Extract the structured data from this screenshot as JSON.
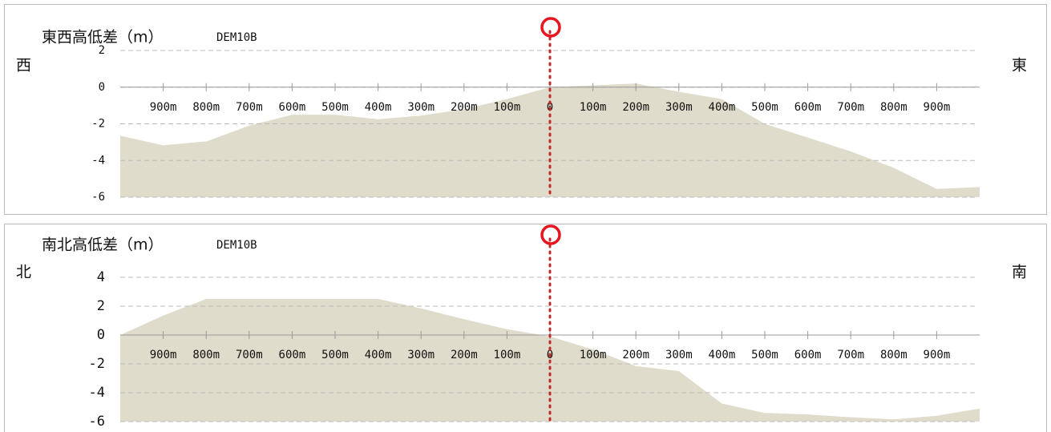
{
  "chart_data": [
    {
      "type": "area",
      "title": "東西高低差（m）",
      "subtitle": "DEM10B",
      "left_label": "西",
      "right_label": "東",
      "x": [
        -1000,
        -900,
        -800,
        -700,
        -600,
        -500,
        -400,
        -300,
        -200,
        -100,
        0,
        100,
        200,
        300,
        400,
        500,
        600,
        700,
        800,
        900,
        1000
      ],
      "values": [
        -2.65,
        -3.17,
        -2.96,
        -2.1,
        -1.5,
        -1.5,
        -1.75,
        -1.55,
        -1.2,
        -0.65,
        0,
        0.1,
        0.2,
        -0.25,
        -0.65,
        -2.0,
        -2.75,
        -3.5,
        -4.4,
        -5.55,
        -5.45
      ],
      "color": "#e0dccb",
      "xlim": [
        -1000,
        1000
      ],
      "xticks": [
        {
          "value": -900,
          "label": "900m"
        },
        {
          "value": -800,
          "label": "800m"
        },
        {
          "value": -700,
          "label": "700m"
        },
        {
          "value": -600,
          "label": "600m"
        },
        {
          "value": -500,
          "label": "500m"
        },
        {
          "value": -400,
          "label": "400m"
        },
        {
          "value": -300,
          "label": "300m"
        },
        {
          "value": -200,
          "label": "200m"
        },
        {
          "value": -100,
          "label": "100m"
        },
        0,
        {
          "value": 100,
          "label": "100m"
        },
        {
          "value": 200,
          "label": "200m"
        },
        {
          "value": 300,
          "label": "300m"
        },
        {
          "value": 400,
          "label": "400m"
        },
        {
          "value": 500,
          "label": "500m"
        },
        {
          "value": 600,
          "label": "600m"
        },
        {
          "value": 700,
          "label": "700m"
        },
        {
          "value": 800,
          "label": "800m"
        },
        {
          "value": 900,
          "label": "900m"
        }
      ],
      "ylim": [
        -6,
        2
      ],
      "yticks": [
        2,
        0,
        -2,
        -4,
        -6
      ],
      "grid": true
    },
    {
      "type": "area",
      "title": "南北高低差（m）",
      "subtitle": "DEM10B",
      "left_label": "北",
      "right_label": "南",
      "x": [
        -1000,
        -900,
        -800,
        -700,
        -600,
        -500,
        -400,
        -300,
        -200,
        -100,
        0,
        100,
        200,
        300,
        400,
        500,
        600,
        700,
        800,
        900,
        1000
      ],
      "values": [
        0,
        1.35,
        2.5,
        2.5,
        2.5,
        2.5,
        2.5,
        1.85,
        1.1,
        0.4,
        -0.1,
        -1.0,
        -2.15,
        -2.5,
        -4.75,
        -5.4,
        -5.5,
        -5.7,
        -5.85,
        -5.6,
        -5.1
      ],
      "color": "#e0dccb",
      "xlim": [
        -1000,
        1000
      ],
      "xticks": [
        {
          "value": -900,
          "label": "900m"
        },
        {
          "value": -800,
          "label": "800m"
        },
        {
          "value": -700,
          "label": "700m"
        },
        {
          "value": -600,
          "label": "600m"
        },
        {
          "value": -500,
          "label": "500m"
        },
        {
          "value": -400,
          "label": "400m"
        },
        {
          "value": -300,
          "label": "300m"
        },
        {
          "value": -200,
          "label": "200m"
        },
        {
          "value": -100,
          "label": "100m"
        },
        0,
        {
          "value": 100,
          "label": "100m"
        },
        {
          "value": 200,
          "label": "200m"
        },
        {
          "value": 300,
          "label": "300m"
        },
        {
          "value": 400,
          "label": "400m"
        },
        {
          "value": 500,
          "label": "500m"
        },
        {
          "value": 600,
          "label": "600m"
        },
        {
          "value": 700,
          "label": "700m"
        },
        {
          "value": 800,
          "label": "800m"
        },
        {
          "value": 900,
          "label": "900m"
        }
      ],
      "ylim": [
        -6,
        4
      ],
      "yticks": [
        4,
        2,
        0,
        -2,
        -4,
        -6
      ],
      "grid": true
    }
  ]
}
